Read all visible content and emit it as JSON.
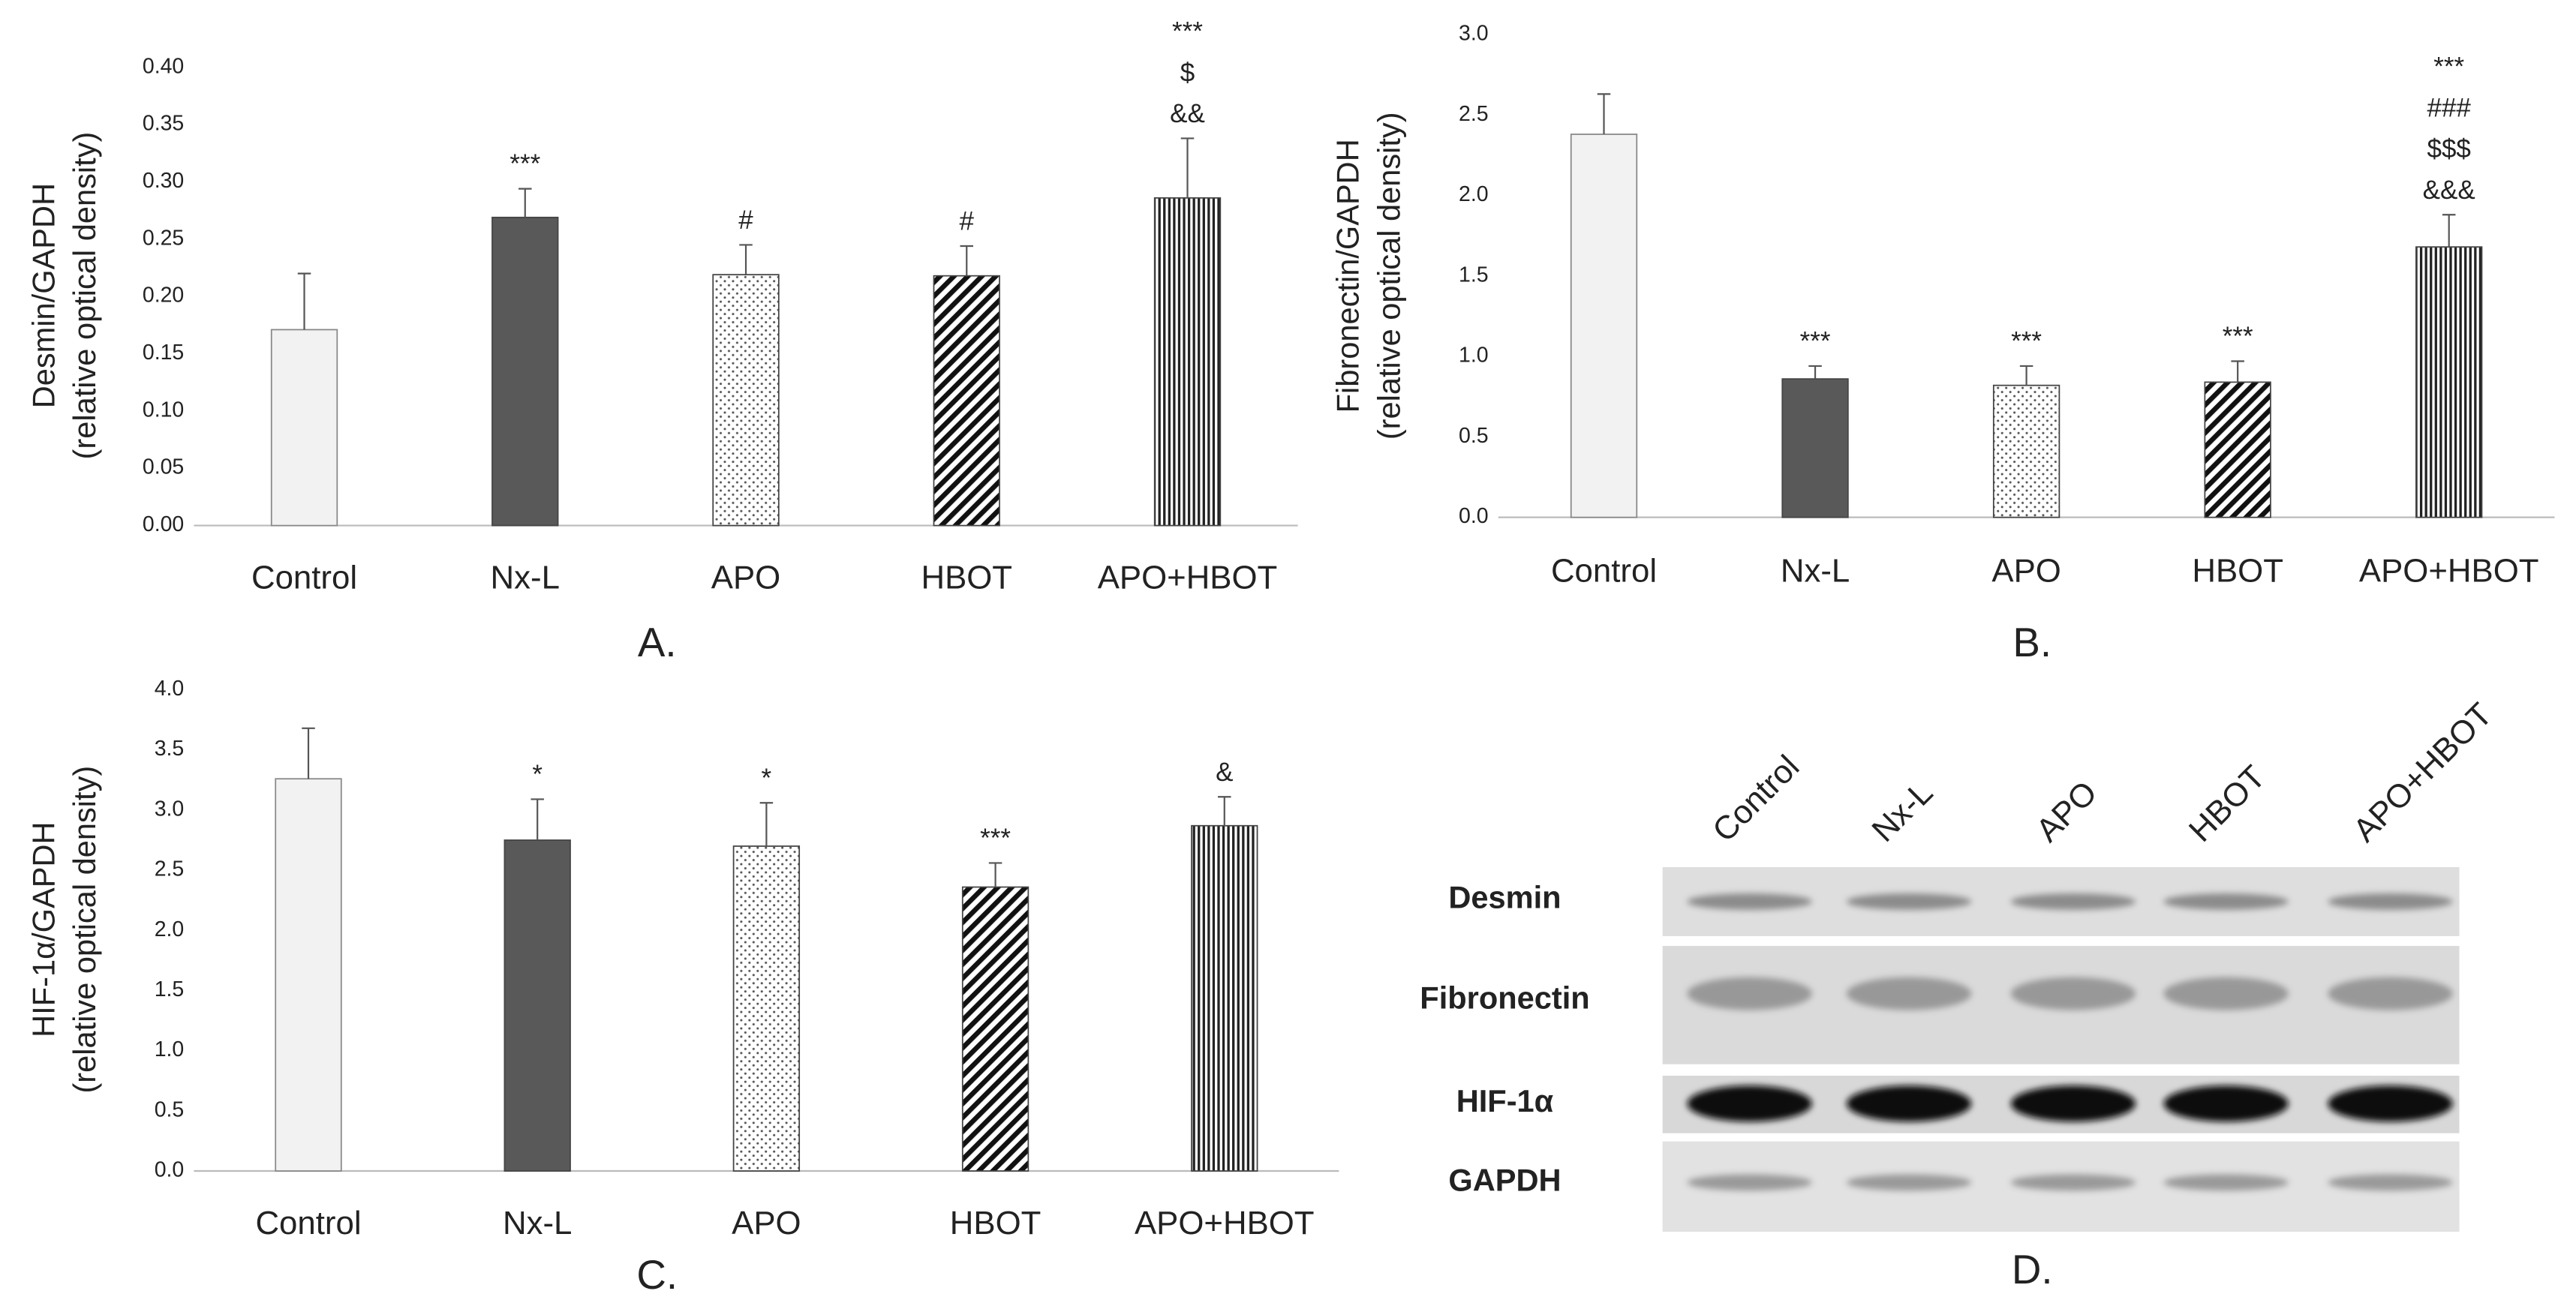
{
  "chart_data": [
    {
      "type": "bar",
      "panel_label": "A.",
      "ylabel": [
        "Desmin/GAPDH",
        "(relative optical density)"
      ],
      "categories": [
        "Control",
        "Nx-L",
        "APO",
        "HBOT",
        "APO+HBOT"
      ],
      "values": [
        0.171,
        0.269,
        0.219,
        0.218,
        0.286
      ],
      "errors": [
        0.049,
        0.025,
        0.026,
        0.026,
        0.052
      ],
      "annotations": [
        [],
        [
          "***"
        ],
        [
          "#"
        ],
        [
          "#"
        ],
        [
          "***",
          "$",
          "&&"
        ]
      ],
      "colors": [
        "#f2f2f2",
        "#595959",
        "#ffffff",
        "#ffffff",
        "#ffffff"
      ],
      "patterns": [
        "solid",
        "solid",
        "dots",
        "diagonal",
        "vertical"
      ],
      "ylim": [
        0,
        0.4
      ],
      "yticks": [
        {
          "value": 0,
          "label": "0.00"
        },
        0.05,
        {
          "value": 0.1,
          "label": "0.10"
        },
        0.15,
        {
          "value": 0.2,
          "label": "0.20"
        },
        0.25,
        {
          "value": 0.3,
          "label": "0.30"
        },
        0.35,
        {
          "value": 0.4,
          "label": "0.40"
        }
      ]
    },
    {
      "type": "bar",
      "panel_label": "B.",
      "ylabel": [
        "Fibronectin/GAPDH",
        "(relative optical density)"
      ],
      "categories": [
        "Control",
        "Nx-L",
        "APO",
        "HBOT",
        "APO+HBOT"
      ],
      "values": [
        2.38,
        0.86,
        0.82,
        0.84,
        1.68
      ],
      "errors": [
        0.25,
        0.08,
        0.12,
        0.13,
        0.2
      ],
      "annotations": [
        [],
        [
          "***"
        ],
        [
          "***"
        ],
        [
          "***"
        ],
        [
          "***",
          "###",
          "$$$",
          "&&&"
        ]
      ],
      "colors": [
        "#f2f2f2",
        "#595959",
        "#ffffff",
        "#ffffff",
        "#ffffff"
      ],
      "patterns": [
        "solid",
        "solid",
        "dots",
        "diagonal",
        "vertical"
      ],
      "ylim": [
        0,
        3
      ],
      "yticks": [
        {
          "value": 0,
          "label": "0.0"
        },
        0.5,
        {
          "value": 1,
          "label": "1.0"
        },
        1.5,
        {
          "value": 2,
          "label": "2.0"
        },
        2.5,
        {
          "value": 3,
          "label": "3.0"
        }
      ]
    },
    {
      "type": "bar",
      "panel_label": "C.",
      "ylabel": [
        "HIF-1α/GAPDH",
        "(relative optical density)"
      ],
      "categories": [
        "Control",
        "Nx-L",
        "APO",
        "HBOT",
        "APO+HBOT"
      ],
      "values": [
        3.26,
        2.75,
        2.7,
        2.36,
        2.87
      ],
      "errors": [
        0.42,
        0.34,
        0.36,
        0.2,
        0.24
      ],
      "annotations": [
        [],
        [
          "*"
        ],
        [
          "*"
        ],
        [
          "***"
        ],
        [
          "&"
        ]
      ],
      "colors": [
        "#f2f2f2",
        "#595959",
        "#ffffff",
        "#ffffff",
        "#ffffff"
      ],
      "patterns": [
        "solid",
        "solid",
        "dots",
        "diagonal",
        "vertical"
      ],
      "ylim": [
        0,
        4
      ],
      "yticks": [
        {
          "value": 0,
          "label": "0.0"
        },
        0.5,
        {
          "value": 1,
          "label": "1.0"
        },
        1.5,
        {
          "value": 2,
          "label": "2.0"
        },
        2.5,
        {
          "value": 3,
          "label": "3.0"
        },
        3.5,
        {
          "value": 4,
          "label": "4.0"
        }
      ]
    }
  ],
  "blot": {
    "panel_label": "D.",
    "lanes": [
      "Control",
      "Nx-L",
      "APO",
      "HBOT",
      "APO+HBOT"
    ],
    "rows": [
      "Desmin",
      "Fibronectin",
      "HIF-1α",
      "GAPDH"
    ]
  }
}
